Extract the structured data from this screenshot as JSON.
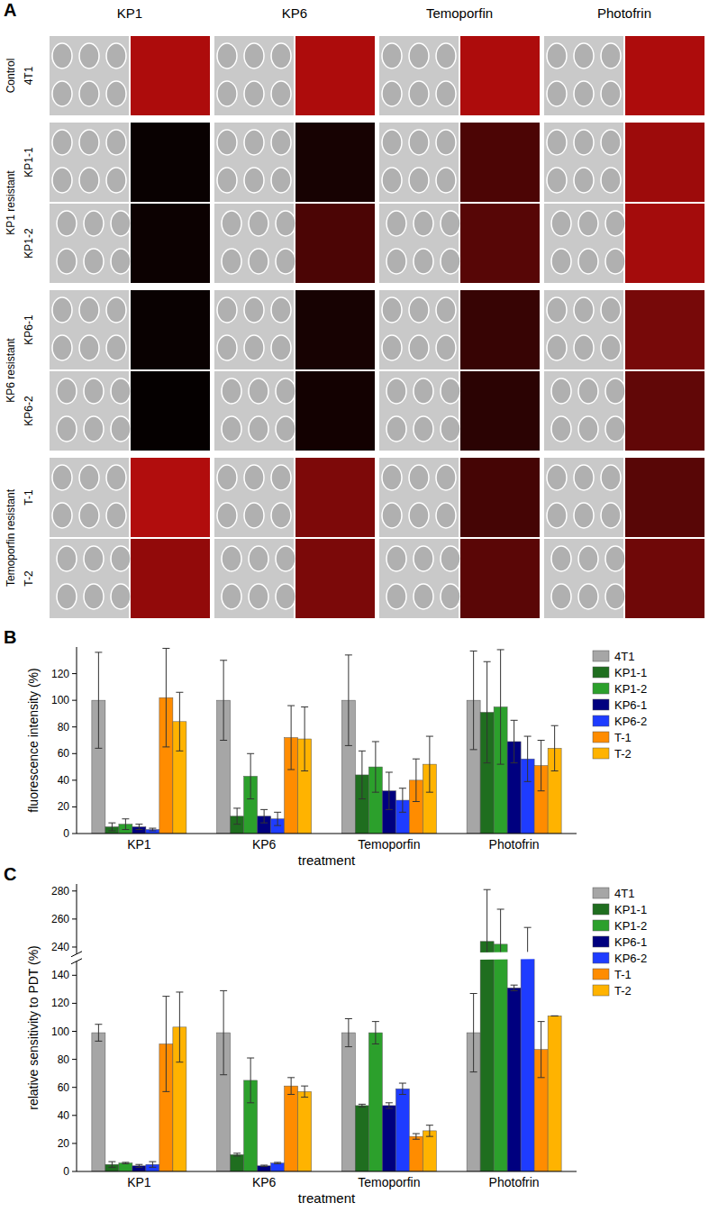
{
  "panel_a": {
    "panel": "A",
    "columns": [
      "KP1",
      "KP6",
      "Temoporfin",
      "Photofrin"
    ],
    "groups": [
      {
        "label": "Control",
        "rows": [
          "4T1"
        ]
      },
      {
        "label": "KP1 resistant",
        "rows": [
          "KP1-1",
          "KP1-2"
        ]
      },
      {
        "label": "KP6 resistant",
        "rows": [
          "KP6-1",
          "KP6-2"
        ]
      },
      {
        "label": "Temoporfin resistant",
        "rows": [
          "T-1",
          "T-2"
        ]
      }
    ]
  },
  "chart_data": [
    {
      "panel": "B",
      "type": "bar",
      "x_label": "treatment",
      "y_label": "fluorescence intensity (%)",
      "categories": [
        "KP1",
        "KP6",
        "Temoporfin",
        "Photofrin"
      ],
      "ylim": [
        0,
        140
      ],
      "yticks": [
        0,
        20,
        40,
        60,
        80,
        100,
        120
      ],
      "legend": "right",
      "series": [
        {
          "name": "4T1",
          "color": "#a6a6a6",
          "values": [
            100,
            100,
            100,
            100
          ],
          "errors": [
            36,
            30,
            34,
            37
          ]
        },
        {
          "name": "KP1-1",
          "color": "#1f6e1f",
          "values": [
            5,
            13,
            44,
            91
          ],
          "errors": [
            3,
            6,
            18,
            38
          ]
        },
        {
          "name": "KP1-2",
          "color": "#2ca02c",
          "values": [
            7,
            43,
            50,
            95
          ],
          "errors": [
            4,
            17,
            19,
            43
          ]
        },
        {
          "name": "KP6-1",
          "color": "#00007f",
          "values": [
            5,
            13,
            32,
            69
          ],
          "errors": [
            2,
            5,
            14,
            16
          ]
        },
        {
          "name": "KP6-2",
          "color": "#1e3cff",
          "values": [
            3,
            11,
            25,
            56
          ],
          "errors": [
            1,
            5,
            9,
            17
          ]
        },
        {
          "name": "T-1",
          "color": "#ff8c00",
          "values": [
            102,
            72,
            40,
            51
          ],
          "errors": [
            37,
            24,
            16,
            19
          ]
        },
        {
          "name": "T-2",
          "color": "#ffb300",
          "values": [
            84,
            71,
            52,
            64
          ],
          "errors": [
            22,
            24,
            21,
            17
          ]
        }
      ]
    },
    {
      "panel": "C",
      "type": "bar",
      "x_label": "treatment",
      "y_label": "relative sensitivity to PDT (%)",
      "categories": [
        "KP1",
        "KP6",
        "Temoporfin",
        "Photofrin"
      ],
      "ylim": [
        0,
        285
      ],
      "y_break": [
        150,
        235
      ],
      "yticks": [
        0,
        20,
        40,
        60,
        80,
        100,
        120,
        140,
        240,
        260,
        280
      ],
      "legend": "right",
      "series": [
        {
          "name": "4T1",
          "color": "#a6a6a6",
          "values": [
            99,
            99,
            99,
            99
          ],
          "errors": [
            6,
            30,
            10,
            28
          ]
        },
        {
          "name": "KP1-1",
          "color": "#1f6e1f",
          "values": [
            5,
            12,
            47,
            244
          ],
          "errors": [
            2,
            1,
            1,
            37
          ]
        },
        {
          "name": "KP1-2",
          "color": "#2ca02c",
          "values": [
            6,
            65,
            99,
            242
          ],
          "errors": [
            0.5,
            16,
            8,
            25
          ]
        },
        {
          "name": "KP6-1",
          "color": "#00007f",
          "values": [
            4,
            4,
            47,
            131
          ],
          "errors": [
            1,
            0.5,
            2,
            2
          ]
        },
        {
          "name": "KP6-2",
          "color": "#1e3cff",
          "values": [
            5,
            6,
            59,
            233
          ],
          "errors": [
            2,
            0.5,
            4,
            21
          ]
        },
        {
          "name": "T-1",
          "color": "#ff8c00",
          "values": [
            91,
            61,
            25,
            87
          ],
          "errors": [
            34,
            6,
            2,
            20
          ]
        },
        {
          "name": "T-2",
          "color": "#ffb300",
          "values": [
            103,
            57,
            29,
            111
          ],
          "errors": [
            25,
            4,
            4,
            0
          ]
        }
      ]
    }
  ]
}
